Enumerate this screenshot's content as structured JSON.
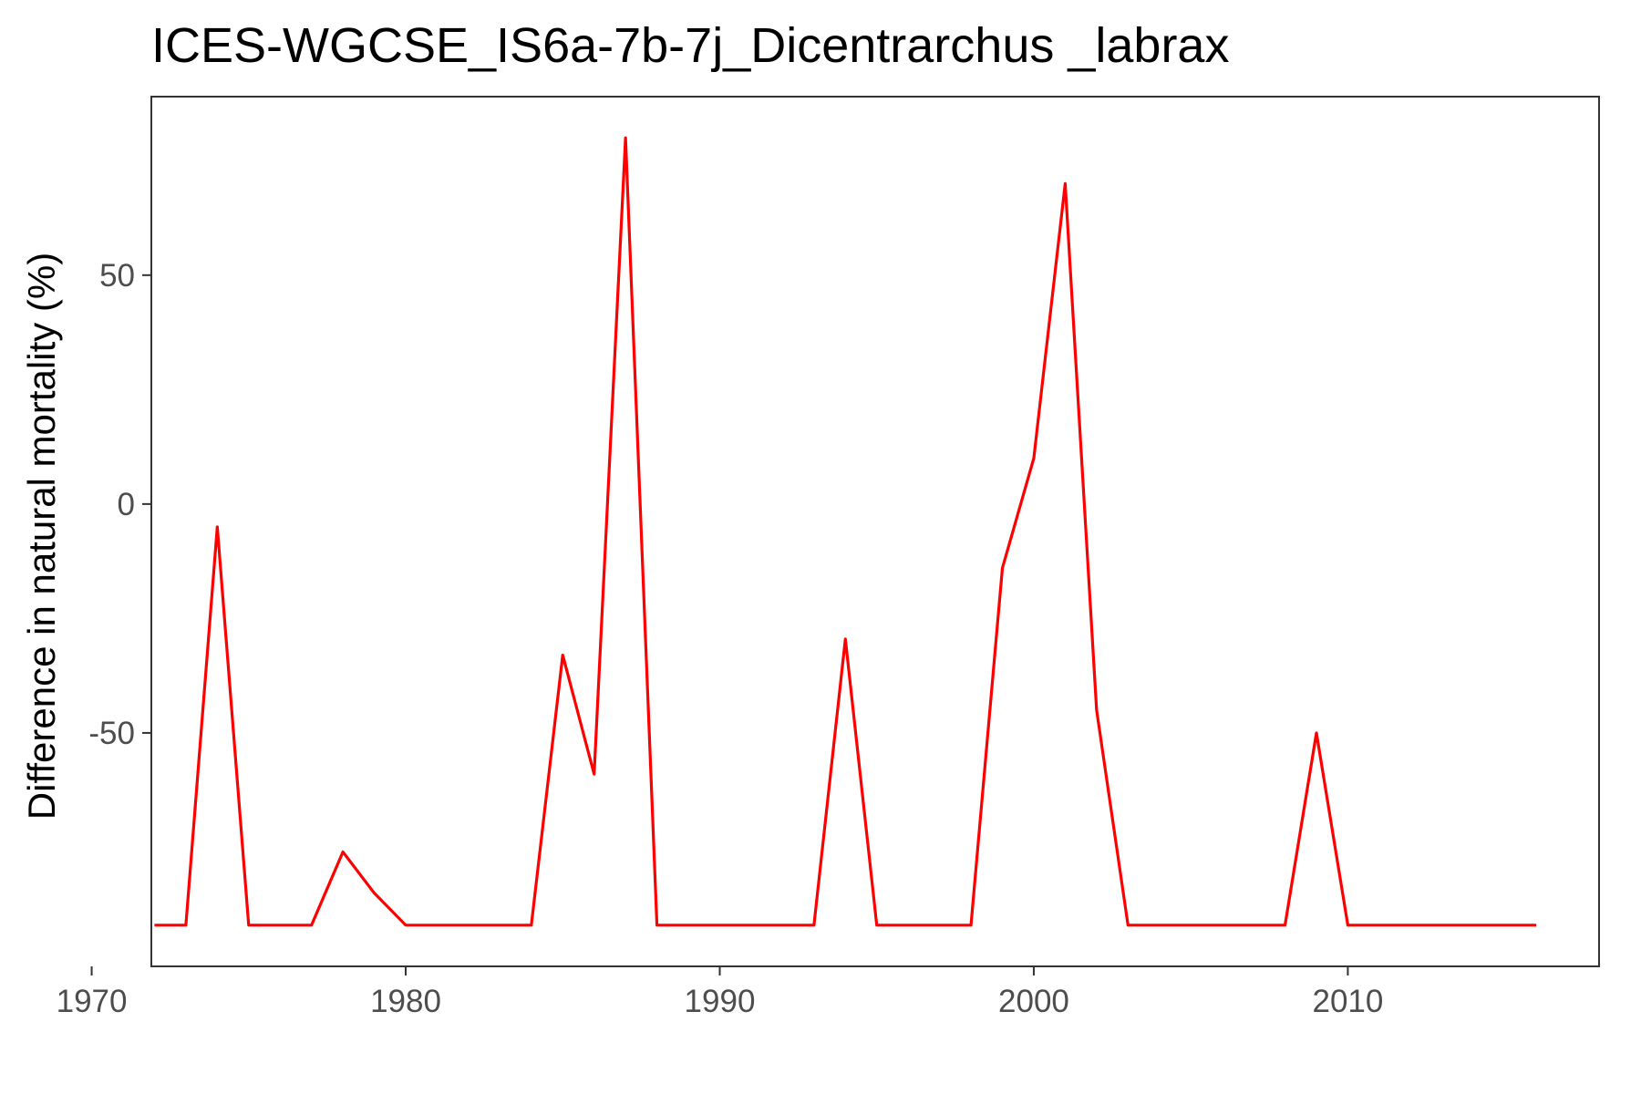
{
  "chart_data": {
    "type": "line",
    "title": "ICES-WGCSE_IS6a-7b-7j_Dicentrarchus _labrax",
    "xlabel": "",
    "ylabel": "Difference in natural mortality (%)",
    "xlim": [
      1971.9,
      2018
    ],
    "ylim": [
      -101,
      89
    ],
    "x_ticks": [
      1970,
      1980,
      1990,
      2000,
      2010
    ],
    "x_tick_labels": [
      "1970",
      "1980",
      "1990",
      "2000",
      "2010"
    ],
    "y_ticks": [
      -50,
      0,
      50
    ],
    "y_tick_labels": [
      "-50",
      "0",
      "50"
    ],
    "grid": false,
    "legend": "none",
    "series": [
      {
        "color": "#ff0000",
        "x": [
          1972,
          1973,
          1974,
          1975,
          1976,
          1977,
          1978,
          1979,
          1980,
          1981,
          1982,
          1983,
          1984,
          1985,
          1986,
          1987,
          1988,
          1989,
          1990,
          1991,
          1992,
          1993,
          1994,
          1995,
          1996,
          1997,
          1998,
          1999,
          2000,
          2001,
          2002,
          2003,
          2004,
          2005,
          2006,
          2007,
          2008,
          2009,
          2010,
          2011,
          2012,
          2013,
          2014,
          2015,
          2016
        ],
        "values": [
          -92,
          -92,
          -5,
          -92,
          -92,
          -92,
          -76,
          -85,
          -92,
          -92,
          -92,
          -92,
          -92,
          -33,
          -59,
          80,
          -92,
          -92,
          -92,
          -92,
          -92,
          -92,
          -29.5,
          -92,
          -92,
          -92,
          -92,
          -14,
          10,
          70,
          -45,
          -92,
          -92,
          -92,
          -92,
          -92,
          -92,
          -50,
          -92,
          -92,
          -92,
          -92,
          -92,
          -92,
          -92
        ]
      }
    ]
  }
}
